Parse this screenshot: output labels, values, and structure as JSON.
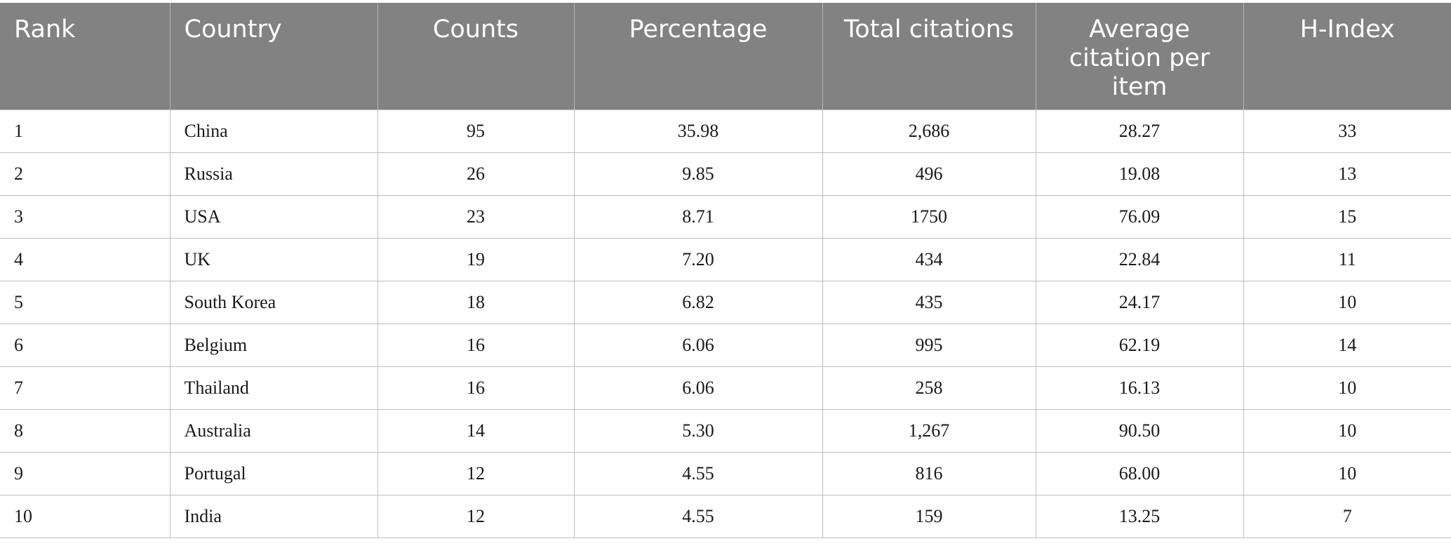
{
  "table": {
    "headers": [
      "Rank",
      "Country",
      "Counts",
      "Percentage",
      "Total citations",
      "Average citation per item",
      "H-Index"
    ],
    "rows": [
      [
        "1",
        "China",
        "95",
        "35.98",
        "2,686",
        "28.27",
        "33"
      ],
      [
        "2",
        "Russia",
        "26",
        "9.85",
        "496",
        "19.08",
        "13"
      ],
      [
        "3",
        "USA",
        "23",
        "8.71",
        "1750",
        "76.09",
        "15"
      ],
      [
        "4",
        "UK",
        "19",
        "7.20",
        "434",
        "22.84",
        "11"
      ],
      [
        "5",
        "South Korea",
        "18",
        "6.82",
        "435",
        "24.17",
        "10"
      ],
      [
        "6",
        "Belgium",
        "16",
        "6.06",
        "995",
        "62.19",
        "14"
      ],
      [
        "7",
        "Thailand",
        "16",
        "6.06",
        "258",
        "16.13",
        "10"
      ],
      [
        "8",
        "Australia",
        "14",
        "5.30",
        "1,267",
        "90.50",
        "10"
      ],
      [
        "9",
        "Portugal",
        "12",
        "4.55",
        "816",
        "68.00",
        "10"
      ],
      [
        "10",
        "India",
        "12",
        "4.55",
        "159",
        "13.25",
        "7"
      ]
    ]
  },
  "colors": {
    "header_background": "#818281",
    "header_text": "#ffffff",
    "grid_line": "#bdbdbd"
  }
}
